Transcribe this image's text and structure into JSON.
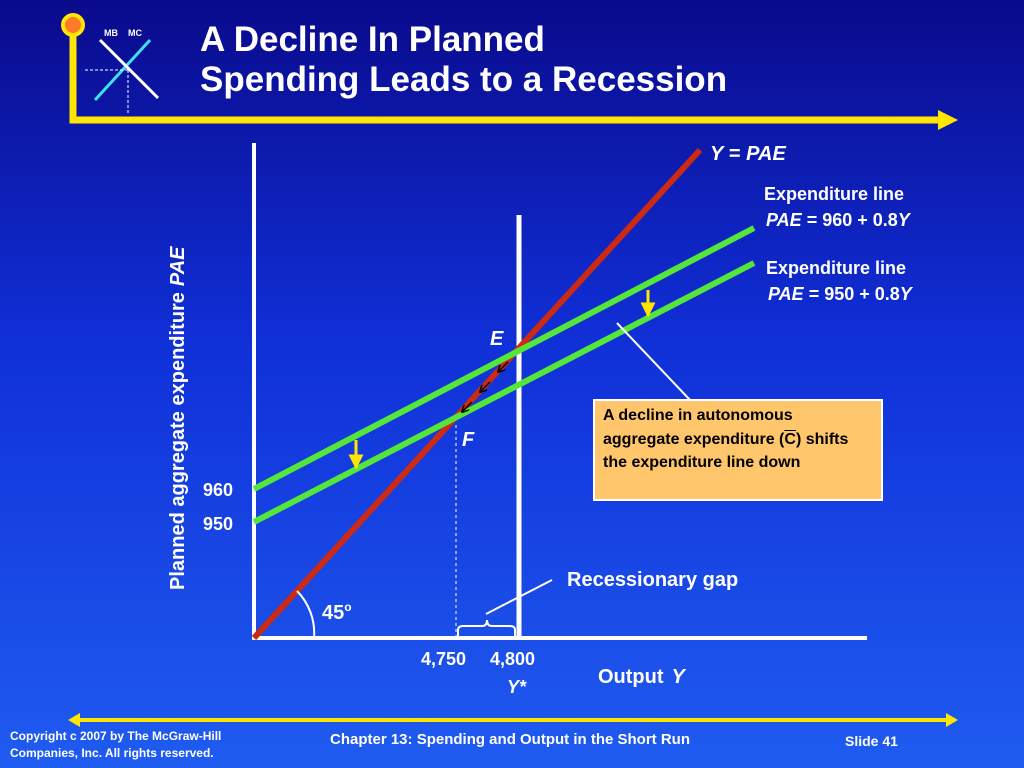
{
  "slide": {
    "title_line1": "A Decline In Planned",
    "title_line2": "Spending Leads to a Recession",
    "logo_label_mb": "MB",
    "logo_label_mc": "MC",
    "copyright_line1": "Copyright c 2007 by The McGraw-Hill",
    "copyright_line2": "Companies, Inc.  All rights reserved.",
    "chapter": "Chapter 13: Spending and Output in the Short Run",
    "slide_number": "Slide 41"
  },
  "callout": {
    "before_c": "A decline in autonomous aggregate expenditure (",
    "c_symbol": "C",
    "after_c": ") shifts the expenditure line down"
  },
  "colors": {
    "background_top": "#0a0a8c",
    "background_bottom": "#1f5cf0",
    "line_45": "#cc2a12",
    "expenditure_lines": "#55e63c",
    "arrows": "#ffe600",
    "callout_fill": "#ffc66b"
  },
  "chart_data": {
    "type": "line",
    "xlabel": "Output",
    "xlabel_var": "Y",
    "ylabel": "Planned aggregate expenditure",
    "ylabel_var": "PAE",
    "x_ticks": [
      {
        "value": 4750,
        "label": "4,750"
      },
      {
        "value": 4800,
        "label": "4,800"
      }
    ],
    "y_ticks": [
      {
        "value": 960,
        "label": "960"
      },
      {
        "value": 950,
        "label": "950"
      }
    ],
    "potential_output_label": "Y*",
    "angle_label": "45",
    "angle_superscript": "o",
    "series": [
      {
        "name": "Y = PAE",
        "name_y": "Y",
        "name_eq": " = ",
        "name_pae": "PAE",
        "intercept": 0,
        "slope": 1
      },
      {
        "name_line1": "Expenditure line",
        "name_pae": "PAE",
        "name_eq": " = 960 + 0.8",
        "name_y": "Y",
        "intercept": 960,
        "slope": 0.8
      },
      {
        "name_line1": "Expenditure line",
        "name_pae": "PAE",
        "name_eq": " = 950 + 0.8",
        "name_y": "Y",
        "intercept": 950,
        "slope": 0.8
      }
    ],
    "points": [
      {
        "label": "E",
        "x": 4800,
        "y": 4800
      },
      {
        "label": "F",
        "x": 4750,
        "y": 4750
      }
    ],
    "annotations": {
      "recessionary_gap": "Recessionary gap"
    }
  }
}
